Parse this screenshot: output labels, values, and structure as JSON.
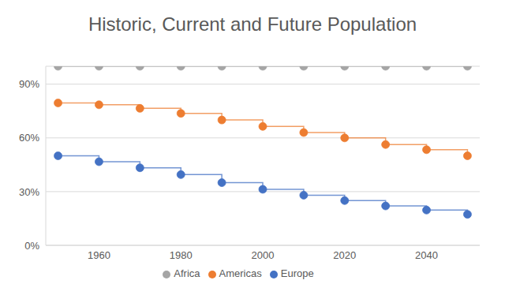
{
  "chart_data": {
    "type": "line",
    "title": "Historic, Current and Future Population",
    "x": [
      1950,
      1960,
      1970,
      1980,
      1990,
      2000,
      2010,
      2020,
      2030,
      2040,
      2050
    ],
    "series": [
      {
        "name": "Europe",
        "color": "#4472c4",
        "values": [
          50,
          46.7,
          43.3,
          39.5,
          35,
          31.3,
          28,
          25,
          22,
          19.7,
          17.3
        ]
      },
      {
        "name": "Americas",
        "color": "#ed7d31",
        "values": [
          79.5,
          78.5,
          76.5,
          73.7,
          70,
          66.4,
          63,
          60,
          56.3,
          53.4,
          50
        ]
      },
      {
        "name": "Africa",
        "color": "#a5a5a5",
        "values": [
          100,
          100,
          100,
          100,
          100,
          100,
          100,
          100,
          100,
          100,
          100
        ]
      }
    ],
    "xlim": [
      1947,
      2053
    ],
    "xticks": [
      1960,
      1980,
      2000,
      2020,
      2040
    ],
    "ylim": [
      0,
      100
    ],
    "yticks": [
      {
        "value": 0,
        "label": "0%"
      },
      {
        "value": 30,
        "label": "30%"
      },
      {
        "value": 60,
        "label": "60%"
      },
      {
        "value": 90,
        "label": "90%"
      }
    ],
    "grid": true,
    "legend": "bottom",
    "line_style": "step",
    "marker": "circle"
  }
}
